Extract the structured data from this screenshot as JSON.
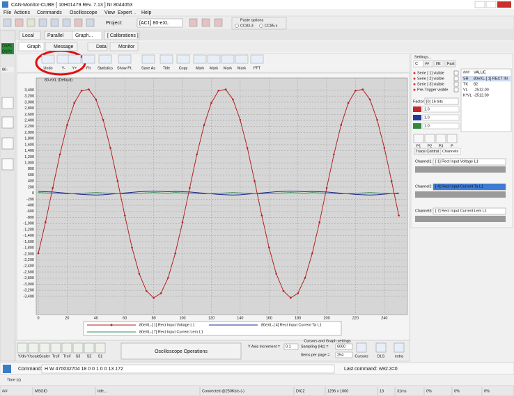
{
  "window": {
    "title": "CAN-Monitor-CUBE [ 10H01479 Rev. 7.13 ] Nr 8044053"
  },
  "menu": [
    "File",
    "Actions",
    "Commands",
    "Oscilloscope",
    "View",
    "Expert",
    ".",
    "Help"
  ],
  "toolbar": {
    "project_label": "Project:",
    "project": "[AC1] 80-eXL",
    "paste_title": "Paste options",
    "paste_options": [
      "CC83.3",
      "CC85.x"
    ]
  },
  "sidebar": [
    "DSP1",
    "DSP2",
    "80-"
  ],
  "tabs": [
    "Local",
    "Parallel",
    "Graph...",
    "[ Calibrations ]"
  ],
  "subtabs": [
    "Graph",
    "Message",
    "Data",
    "Monitor"
  ],
  "graph_toolbar": [
    "Undo",
    "Y-",
    "Y+",
    "Fit",
    "Statistics",
    "Show Pt.",
    "Save As",
    "Title",
    "Copy",
    "Mark",
    "Mark",
    "Mark",
    "Mark",
    "FFT"
  ],
  "chart_data": {
    "type": "line",
    "annotation": "80-eXL (Default)",
    "x": [
      0,
      5,
      10,
      15,
      20,
      25,
      30,
      35,
      40,
      45,
      50,
      55,
      60,
      65,
      70,
      75,
      80,
      85,
      90,
      95,
      100,
      105,
      110,
      115,
      120,
      125,
      130,
      135,
      140,
      145,
      150,
      155,
      160,
      165,
      170,
      175,
      180,
      185,
      190,
      195,
      200,
      205,
      210,
      215,
      220,
      225,
      230,
      235,
      240,
      245,
      250
    ],
    "series": [
      {
        "name": "80eXL-[ 1] Rect Input Voltage L1",
        "color": "#b22222",
        "markers": true,
        "values": [
          -1980,
          -956,
          174,
          1281,
          2250,
          2978,
          3382,
          3420,
          3088,
          2418,
          1491,
          397,
          -735,
          -1793,
          -2653,
          -3223,
          -3448,
          -3300,
          -2791,
          -1980,
          -956,
          174,
          1281,
          2250,
          2978,
          3382,
          3420,
          3088,
          2418,
          1491,
          397,
          -735,
          -1793,
          -2653,
          -3223,
          -3448,
          -3300,
          -2791,
          -1980,
          -956,
          174,
          1281,
          2250,
          2978,
          3382,
          3420,
          3088,
          2418,
          1491,
          397,
          -735
        ]
      },
      {
        "name": "80eXL-[ 4] Rect Input Current Ta L1",
        "color": "#1f2a8c",
        "markers": false,
        "values": [
          60,
          50,
          40,
          20,
          0,
          -20,
          -40,
          -50,
          -60,
          -50,
          -30,
          -10,
          10,
          30,
          50,
          60,
          70,
          60,
          50,
          60,
          50,
          40,
          20,
          0,
          -20,
          -40,
          -50,
          -60,
          -50,
          -30,
          -10,
          10,
          30,
          50,
          60,
          70,
          60,
          50,
          60,
          50,
          40,
          20,
          0,
          -20,
          -40,
          -50,
          -60,
          -50,
          -30,
          -10,
          10
        ]
      },
      {
        "name": "80eXL-[ 7] Rect Input Current Lem L1",
        "color": "#2e8b57",
        "markers": false,
        "values": [
          20,
          10,
          0,
          -10,
          -20,
          -10,
          0,
          10,
          20,
          10,
          0,
          -10,
          -20,
          -10,
          0,
          10,
          20,
          10,
          0,
          20,
          10,
          0,
          -10,
          -20,
          -10,
          0,
          10,
          20,
          10,
          0,
          -10,
          -20,
          -10,
          0,
          10,
          20,
          10,
          0,
          20,
          10,
          0,
          -10,
          -20,
          -10,
          0,
          10,
          20,
          10,
          0,
          -10,
          -20
        ]
      }
    ],
    "xlim": [
      0,
      256
    ],
    "xticks": [
      0,
      20,
      40,
      60,
      80,
      100,
      120,
      140,
      160,
      180,
      200,
      220,
      240
    ],
    "ylim": [
      -4000,
      3800
    ],
    "yticks": [
      {
        "value": 3400,
        "label": "3,400"
      },
      {
        "value": 3200,
        "label": "3,200"
      },
      {
        "value": 3000,
        "label": "3,000"
      },
      {
        "value": 2800,
        "label": "2,800"
      },
      {
        "value": 2600,
        "label": "2,600"
      },
      {
        "value": 2400,
        "label": "2,400"
      },
      {
        "value": 2200,
        "label": "2,200"
      },
      {
        "value": 2000,
        "label": "2,000"
      },
      {
        "value": 1800,
        "label": "1,800"
      },
      {
        "value": 1600,
        "label": "1,600"
      },
      {
        "value": 1400,
        "label": "1,400"
      },
      {
        "value": 1200,
        "label": "1,200"
      },
      {
        "value": 1000,
        "label": "1,000"
      },
      800,
      600,
      400,
      200,
      0,
      -200,
      -400,
      -600,
      -800,
      {
        "value": -1000,
        "label": "-1,000"
      },
      {
        "value": -1200,
        "label": "-1,200"
      },
      {
        "value": -1400,
        "label": "-1,400"
      },
      {
        "value": -1600,
        "label": "-1,600"
      },
      {
        "value": -1800,
        "label": "-1,800"
      },
      {
        "value": -2000,
        "label": "-2,000"
      },
      {
        "value": -2200,
        "label": "-2,200"
      },
      {
        "value": -2400,
        "label": "-2,400"
      },
      {
        "value": -2600,
        "label": "-2,600"
      },
      {
        "value": -2800,
        "label": "-2,800"
      },
      {
        "value": -3000,
        "label": "-3,000"
      },
      {
        "value": -3200,
        "label": "-3,200"
      },
      {
        "value": -3400,
        "label": "-3,400"
      }
    ],
    "grid": true
  },
  "settings": {
    "title": "Settings...",
    "tabs": [
      "C",
      "##",
      "I/E",
      "Fast"
    ],
    "checks": [
      "Serie [ 1] visible",
      "Serie [ 2] visible",
      "Serie [ 3] visible",
      "Pre-Trigger visible"
    ],
    "table_header": [
      "###",
      "VALUE"
    ],
    "table_rows": [
      [
        "SR",
        "80eXL-[ 1] RECT IN"
      ],
      [
        "TK",
        "82"
      ],
      [
        "VL",
        "-2512.00"
      ],
      [
        "K*VL",
        "-2512.00"
      ]
    ],
    "factor_label": "Factor",
    "factor_value": "[0] 16 bits",
    "factor_inputs": [
      "1.0",
      "1.0",
      "1.0"
    ],
    "buttons": [
      "P1",
      "P2",
      "P3",
      "P"
    ],
    "panel_tabs": [
      "Trace Control",
      "Channels"
    ],
    "channels": [
      {
        "label": "Channel1 :",
        "value": "[ 1] Rect Input Voltage L1"
      },
      {
        "label": "Channel2 :",
        "value": "[ 4] Rect Input Current Ta L1"
      },
      {
        "label": "Channel3 :",
        "value": "[ 7] Rect Input Current Lem L1"
      }
    ]
  },
  "bottom": {
    "buttons": [
      "Y/div",
      "Y/scale",
      "Scaler",
      "Trcif",
      "Trcif",
      "S3",
      "S2",
      "S1"
    ],
    "operations": "Oscilloscope Operations",
    "y_increment_label": "Y Axis Increment =",
    "y_increment": "0.1",
    "cursors_title": "Cursors and Graph settings",
    "sampling_label": "Sampling (Hz) =",
    "sampling": "6000",
    "items_label": "Items per page =",
    "items": "254",
    "icons": [
      "Cursors",
      "DLS",
      "extra"
    ]
  },
  "command": {
    "label": "Command:",
    "text": "H W 470032704 18 0 0 1 0 0 13 172",
    "last_label": "Last command:",
    "last": "w92.3=0",
    "time_label": "Time (s)"
  },
  "status": [
    "#/#",
    "MSGID",
    "Idle...",
    "Connected @250Kb/s (-)",
    "DIC2",
    "1296 x 1000",
    "13",
    "31ms",
    "0%",
    "0%",
    "0%"
  ]
}
